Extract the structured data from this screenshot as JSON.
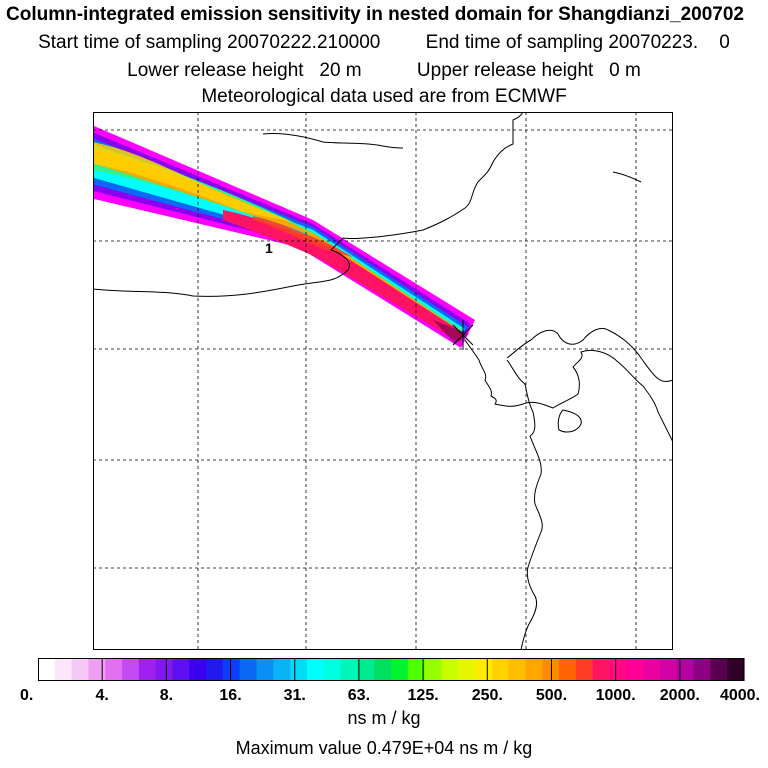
{
  "title": {
    "line1": "Column-integrated emission sensitivity in nested domain for Shangdianzi_200702",
    "start_label": "Start time of sampling",
    "start_value": "20070222.210000",
    "end_label": "End time of sampling",
    "end_value": "20070223.",
    "end_value2": "0",
    "lower_label": "Lower release height",
    "lower_value": "20 m",
    "upper_label": "Upper release height",
    "upper_value": "0 m",
    "met_line": "Meteorological data used are from ECMWF"
  },
  "map": {
    "release_marker_label": "1"
  },
  "colorbar": {
    "ticks": [
      "0.",
      "4.",
      "8.",
      "16.",
      "31.",
      "63.",
      "125.",
      "250.",
      "500.",
      "1000.",
      "2000.",
      "4000."
    ],
    "colors": [
      "#ffffff",
      "#fbe6fb",
      "#f5c8f5",
      "#ee9ef3",
      "#e36ef0",
      "#c24af0",
      "#a020f0",
      "#8218f0",
      "#6010f0",
      "#3c00f0",
      "#2218f0",
      "#0a40f5",
      "#0a68f5",
      "#0a90f5",
      "#08b4f5",
      "#00dcf5",
      "#00ffff",
      "#00ffe0",
      "#00f5b8",
      "#00eb90",
      "#00e060",
      "#00f530",
      "#50ff00",
      "#96ff00",
      "#c8ff00",
      "#e6f500",
      "#ffeb00",
      "#ffd200",
      "#ffbe00",
      "#ffa500",
      "#ff8c00",
      "#ff6400",
      "#ff3c28",
      "#ff1464",
      "#ff0a82",
      "#ff0096",
      "#eb00a0",
      "#d200a5",
      "#b400a0",
      "#8c0082",
      "#5a0050",
      "#300028"
    ],
    "units": "ns m / kg",
    "max_value_text": "Maximum value  0.479E+04 ns m / kg"
  }
}
